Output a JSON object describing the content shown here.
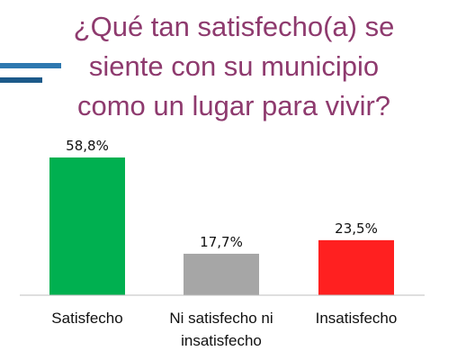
{
  "chart_data": {
    "type": "bar",
    "title": "¿Qué tan satisfecho(a) se siente con su municipio como un lugar para vivir?",
    "categories": [
      [
        "Satisfecho"
      ],
      [
        "Ni satisfecho ni",
        "insatisfecho"
      ],
      [
        "Insatisfecho"
      ]
    ],
    "values": [
      58.8,
      17.7,
      23.5
    ],
    "value_labels": [
      "58,8%",
      "17,7%",
      "23,5%"
    ],
    "colors": [
      "#00b050",
      "#a6a6a6",
      "#ff2020"
    ],
    "xlabel": "",
    "ylabel": "",
    "ylim": [
      0,
      60
    ],
    "grid": false,
    "legend": "none"
  },
  "colors": {
    "title": "#8e3a6e",
    "deco_line_top": "#2e78b0",
    "deco_line_bottom": "#1c5a8a",
    "axis": "#bfbfbf"
  }
}
